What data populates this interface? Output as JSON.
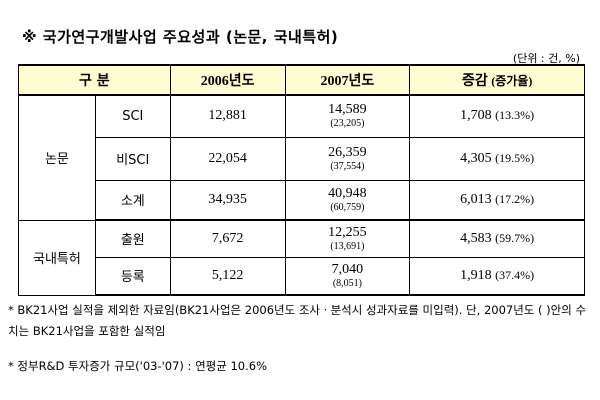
{
  "header": {
    "title": "※ 국가연구개발사업 주요성과 (논문, 국내특허)",
    "unit": "(단위 : 건, %)"
  },
  "table": {
    "columns": {
      "category": "구 분",
      "y2006": "2006년도",
      "y2007": "2007년도",
      "change": "증감",
      "rate": "(증가율)"
    },
    "groups": [
      {
        "label": "논문",
        "rows": [
          {
            "item": "SCI",
            "y2006": "12,881",
            "y2007": "14,589",
            "y2007_incl": "(23,205)",
            "change": "1,708",
            "rate": "(13.3%)"
          },
          {
            "item": "비SCI",
            "y2006": "22,054",
            "y2007": "26,359",
            "y2007_incl": "(37,554)",
            "change": "4,305",
            "rate": "(19.5%)"
          },
          {
            "item": "소계",
            "y2006": "34,935",
            "y2007": "40,948",
            "y2007_incl": "(60,759)",
            "change": "6,013",
            "rate": "(17.2%)"
          }
        ]
      },
      {
        "label": "국내특허",
        "rows": [
          {
            "item": "출원",
            "y2006": "7,672",
            "y2007": "12,255",
            "y2007_incl": "(13,691)",
            "change": "4,583",
            "rate": "(59.7%)"
          },
          {
            "item": "등록",
            "y2006": "5,122",
            "y2007": "7,040",
            "y2007_incl": "(8,051)",
            "change": "1,918",
            "rate": "(37.4%)"
          }
        ]
      }
    ]
  },
  "notes": [
    "* BK21사업 실적을 제외한 자료임(BK21사업은 2006년도 조사ㆍ분석시 성과자료를 미입력). 단, 2007년도 (    )안의 수치는 BK21사업을 포함한 실적임",
    "* 정부R&D 투자증가 규모('03-'07) : 연평균 10.6%"
  ]
}
